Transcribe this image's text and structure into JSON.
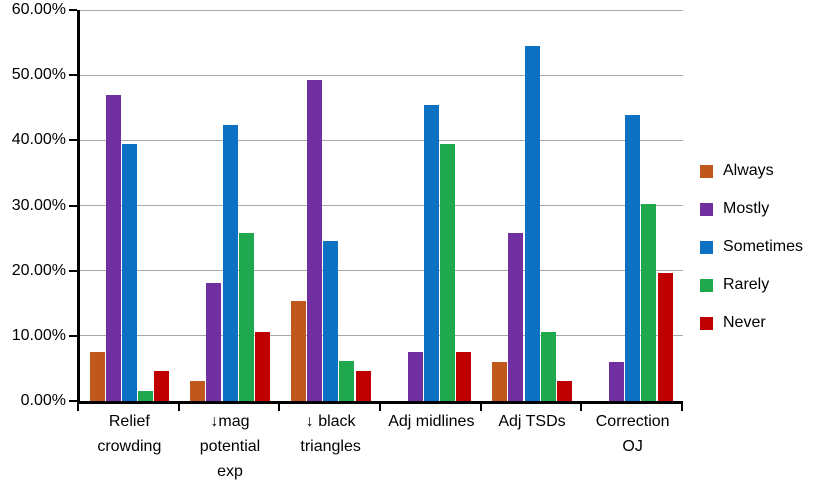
{
  "chart_data": {
    "type": "bar",
    "title": "",
    "xlabel": "",
    "ylabel": "",
    "ylim": [
      0,
      60
    ],
    "ytick_step": 10,
    "ytick_labels": [
      "0.00%",
      "10.00%",
      "20.00%",
      "30.00%",
      "40.00%",
      "50.00%",
      "60.00%"
    ],
    "grid": true,
    "legend_position": "right",
    "categories": [
      "Relief crowding",
      "↓mag potential exp",
      "↓ black triangles",
      "Adj midlines",
      "Adj TSDs",
      "Correction OJ"
    ],
    "category_lines": [
      [
        "Relief",
        "crowding"
      ],
      [
        "↓mag",
        "potential",
        "exp"
      ],
      [
        "↓ black",
        "triangles"
      ],
      [
        "Adj midlines"
      ],
      [
        "Adj TSDs"
      ],
      [
        "Correction",
        "OJ"
      ]
    ],
    "series": [
      {
        "name": "Always",
        "color": "#C0571C",
        "values": [
          7.58,
          3.03,
          15.38,
          0,
          6.06,
          0
        ]
      },
      {
        "name": "Mostly",
        "color": "#7030A0",
        "values": [
          46.97,
          18.18,
          49.23,
          7.58,
          25.76,
          6.06
        ]
      },
      {
        "name": "Sometimes",
        "color": "#0C71C3",
        "values": [
          39.39,
          42.42,
          24.62,
          45.45,
          54.55,
          43.94
        ]
      },
      {
        "name": "Rarely",
        "color": "#1FA84D",
        "values": [
          1.52,
          25.76,
          6.15,
          39.39,
          10.61,
          30.3
        ]
      },
      {
        "name": "Never",
        "color": "#C00000",
        "values": [
          4.55,
          10.61,
          4.62,
          7.58,
          3.03,
          19.7
        ]
      }
    ]
  },
  "colors": {
    "background": "#FFFFFF",
    "gridline": "#A8A8A8",
    "axis": "#000000",
    "text": "#000000"
  }
}
